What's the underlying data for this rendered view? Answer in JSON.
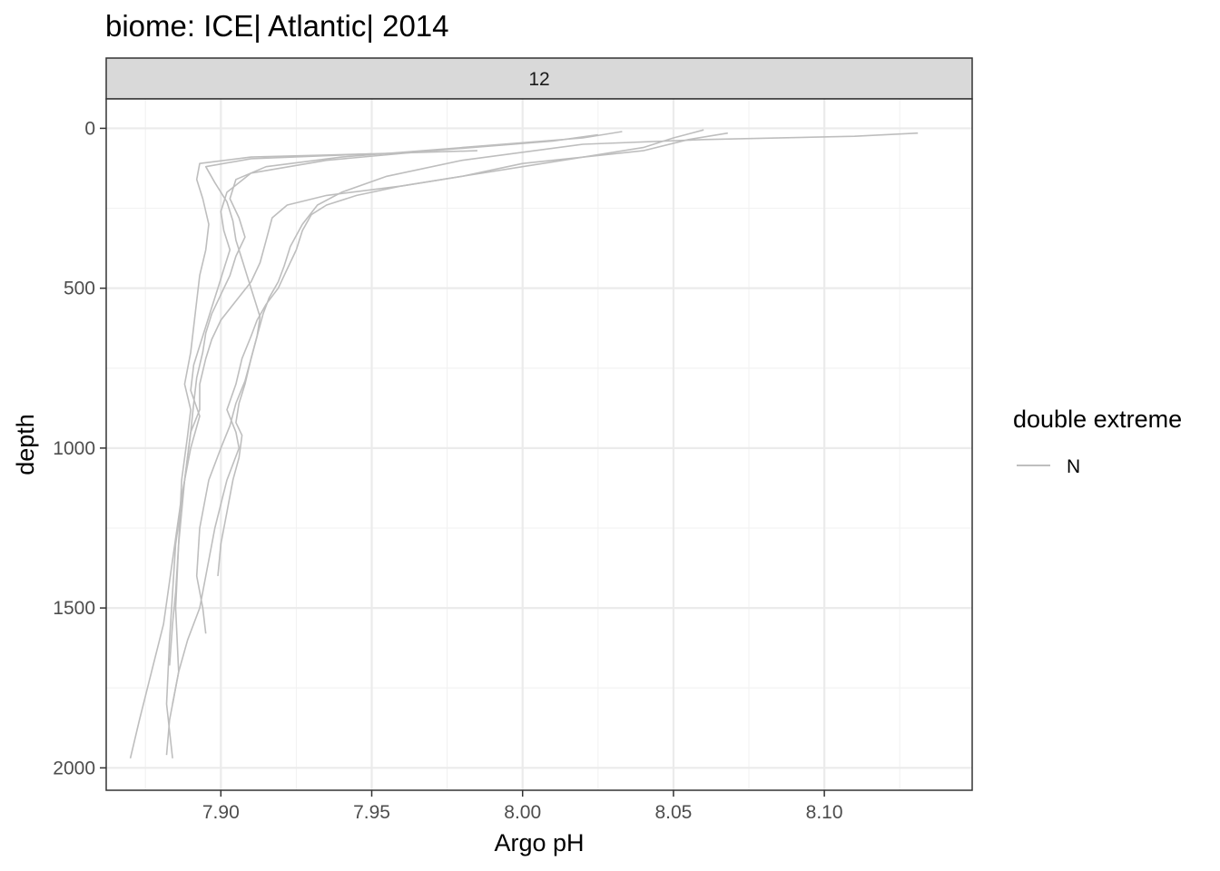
{
  "chart_data": {
    "type": "line",
    "title": "biome: ICE| Atlantic| 2014",
    "facet_label": "12",
    "xlabel": "Argo pH",
    "ylabel": "depth",
    "xlim": [
      7.862,
      8.149
    ],
    "ylim": [
      2070,
      -92
    ],
    "y_reversed": true,
    "x_ticks": [
      7.9,
      7.95,
      8.0,
      8.05,
      8.1
    ],
    "x_tick_labels": [
      "7.90",
      "7.95",
      "8.00",
      "8.05",
      "8.10"
    ],
    "y_ticks": [
      0,
      500,
      1000,
      1500,
      2000
    ],
    "y_tick_labels": [
      "0",
      "500",
      "1000",
      "1500",
      "2000"
    ],
    "grid": true,
    "line_color": "#bebebe",
    "legend": {
      "title": "double extreme",
      "position": "right",
      "entries": [
        {
          "label": "N",
          "color": "#bebebe"
        }
      ]
    },
    "series": [
      {
        "name": "N",
        "x": [
          8.131,
          8.11,
          8.06,
          8.02,
          7.98,
          7.955,
          7.94,
          7.932,
          7.927,
          7.923,
          7.921,
          7.919,
          7.916,
          7.914,
          7.912,
          7.91,
          7.908,
          7.906,
          7.905,
          7.907,
          7.906,
          7.904,
          7.902,
          7.9,
          7.899
        ],
        "y": [
          15,
          25,
          35,
          50,
          100,
          150,
          200,
          240,
          300,
          370,
          430,
          480,
          530,
          580,
          650,
          720,
          800,
          860,
          920,
          960,
          1030,
          1100,
          1200,
          1300,
          1400
        ]
      },
      {
        "name": "N",
        "x": [
          8.068,
          8.055,
          8.04,
          8.0,
          7.98,
          7.96,
          7.945,
          7.935,
          7.93,
          7.927,
          7.925,
          7.922,
          7.919,
          7.915,
          7.912,
          7.91,
          7.907,
          7.905,
          7.902,
          7.905,
          7.906,
          7.902,
          7.898,
          7.895,
          7.893,
          7.889,
          7.886,
          7.884
        ],
        "y": [
          15,
          35,
          70,
          110,
          150,
          180,
          210,
          240,
          270,
          320,
          380,
          440,
          500,
          550,
          600,
          650,
          720,
          800,
          880,
          950,
          1000,
          1100,
          1250,
          1400,
          1500,
          1600,
          1700,
          1800
        ]
      },
      {
        "name": "N",
        "x": [
          8.06,
          8.05,
          8.04,
          8.0,
          7.96,
          7.935,
          7.922,
          7.917,
          7.915,
          7.913,
          7.91,
          7.905,
          7.9,
          7.897,
          7.895,
          7.893,
          7.893,
          7.89,
          7.888,
          7.885,
          7.883,
          7.882,
          7.884
        ],
        "y": [
          5,
          30,
          60,
          120,
          180,
          210,
          240,
          280,
          350,
          420,
          480,
          540,
          600,
          660,
          720,
          800,
          880,
          950,
          1100,
          1300,
          1600,
          1800,
          1970
        ]
      },
      {
        "name": "N",
        "x": [
          8.033,
          8.02,
          7.98,
          7.94,
          7.915,
          7.905,
          7.903,
          7.906,
          7.908,
          7.905,
          7.903,
          7.9,
          7.897,
          7.895,
          7.894,
          7.892,
          7.891,
          7.89,
          7.888,
          7.886,
          7.885,
          7.886,
          7.883,
          7.882
        ],
        "y": [
          10,
          30,
          60,
          90,
          120,
          160,
          220,
          280,
          340,
          400,
          460,
          520,
          580,
          640,
          700,
          780,
          860,
          950,
          1100,
          1300,
          1500,
          1700,
          1850,
          1960
        ]
      },
      {
        "name": "N",
        "x": [
          8.025,
          8.01,
          7.97,
          7.935,
          7.91,
          7.902,
          7.9,
          7.901,
          7.903,
          7.901,
          7.899,
          7.897,
          7.895,
          7.893,
          7.891,
          7.89,
          7.893,
          7.89,
          7.887,
          7.884,
          7.881,
          7.877,
          7.873,
          7.87
        ],
        "y": [
          20,
          40,
          70,
          100,
          140,
          200,
          260,
          320,
          380,
          440,
          500,
          560,
          620,
          680,
          740,
          820,
          900,
          1000,
          1150,
          1350,
          1550,
          1700,
          1850,
          1970
        ]
      },
      {
        "name": "N",
        "x": [
          7.985,
          7.95,
          7.91,
          7.893,
          7.892,
          7.894,
          7.896,
          7.895,
          7.893,
          7.892,
          7.891,
          7.89,
          7.888,
          7.89,
          7.889,
          7.887,
          7.886,
          7.885,
          7.884,
          7.883
        ],
        "y": [
          70,
          80,
          90,
          110,
          160,
          220,
          300,
          380,
          460,
          540,
          620,
          700,
          800,
          880,
          960,
          1100,
          1300,
          1450,
          1550,
          1680
        ]
      },
      {
        "name": "N",
        "x": [
          7.95,
          7.91,
          7.895,
          7.898,
          7.902,
          7.904,
          7.905,
          7.907,
          7.909,
          7.911,
          7.913,
          7.912,
          7.91,
          7.908,
          7.905,
          7.903,
          7.9,
          7.896,
          7.893,
          7.892,
          7.894,
          7.895
        ],
        "y": [
          80,
          95,
          120,
          170,
          230,
          290,
          350,
          410,
          470,
          530,
          590,
          650,
          720,
          790,
          860,
          930,
          1000,
          1100,
          1250,
          1400,
          1500,
          1580
        ]
      }
    ]
  }
}
